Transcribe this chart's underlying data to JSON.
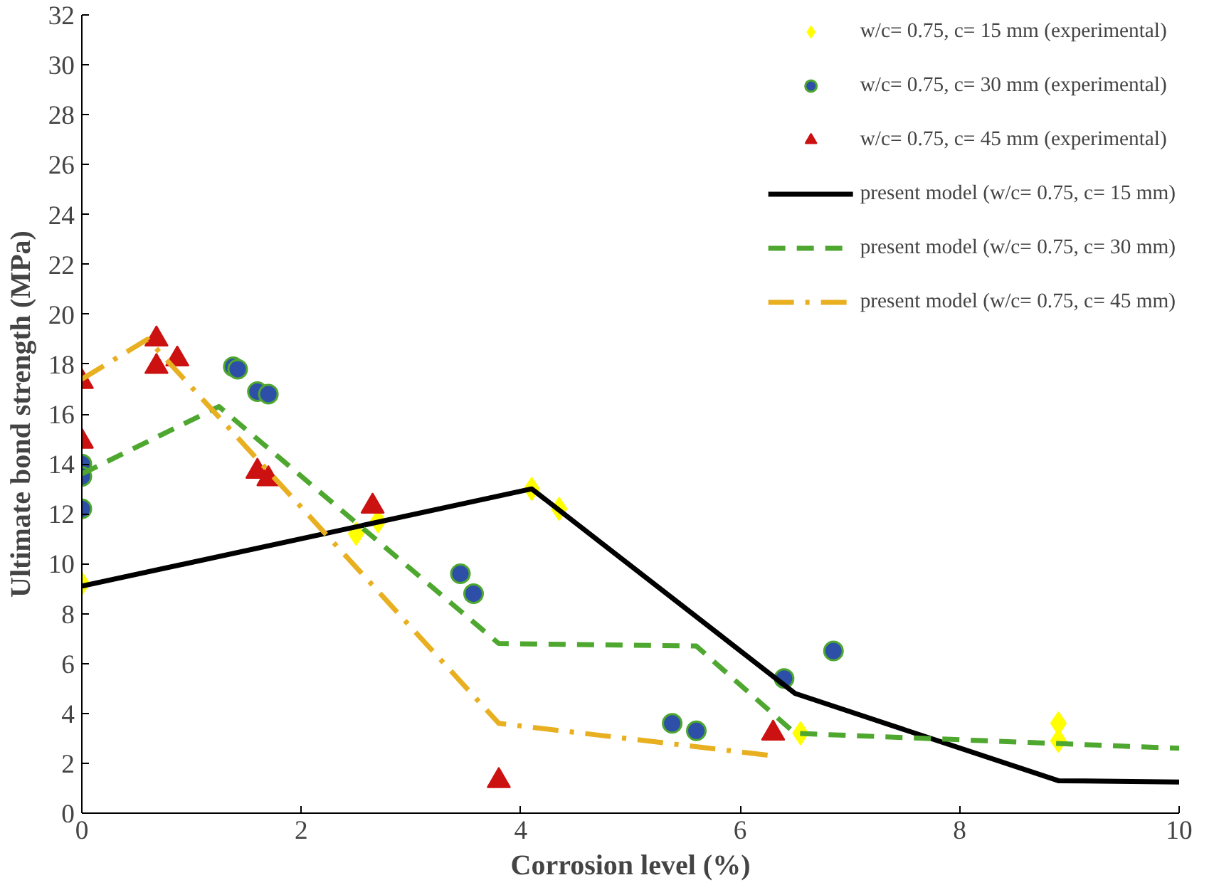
{
  "chart_data": {
    "type": "scatter",
    "xlabel": "Corrosion level (%)",
    "ylabel": "Ultimate bond strength (MPa)",
    "xlim": [
      0,
      10
    ],
    "ylim": [
      0,
      32
    ],
    "xticks": [
      0,
      2,
      4,
      6,
      8,
      10
    ],
    "yticks": [
      0,
      2,
      4,
      6,
      8,
      10,
      12,
      14,
      16,
      18,
      20,
      22,
      24,
      26,
      28,
      30,
      32
    ],
    "grid": false,
    "legend": "top right",
    "series": [
      {
        "name": "w/c= 0.75, c= 15 mm (experimental)",
        "marker": "diamond",
        "color": "#ffff00",
        "x": [
          0,
          2.5,
          2.7,
          4.1,
          4.35,
          6.55,
          8.9,
          8.9
        ],
        "values": [
          9.2,
          11.2,
          11.7,
          13.0,
          12.2,
          3.2,
          3.6,
          2.9
        ]
      },
      {
        "name": "w/c= 0.75, c= 30 mm (experimental)",
        "marker": "circle",
        "color": "#2e4fa8",
        "x": [
          0,
          0,
          0,
          1.38,
          1.42,
          1.6,
          1.7,
          3.45,
          3.57,
          5.38,
          5.6,
          6.4,
          6.85
        ],
        "values": [
          14.0,
          13.5,
          12.2,
          17.9,
          17.8,
          16.9,
          16.8,
          9.6,
          8.8,
          3.6,
          3.3,
          5.4,
          6.5
        ]
      },
      {
        "name": "w/c= 0.75, c= 45 mm (experimental)",
        "marker": "triangle",
        "color": "#cc1111",
        "x": [
          0,
          0,
          0.68,
          0.68,
          0.87,
          1.6,
          1.7,
          2.65,
          3.8,
          6.3
        ],
        "values": [
          17.3,
          14.9,
          19.0,
          17.9,
          18.2,
          13.7,
          13.4,
          12.3,
          1.3,
          3.2
        ]
      },
      {
        "name": "present model (w/c= 0.75, c= 15 mm)",
        "type": "line",
        "line_style": "solid",
        "color": "#000000",
        "x": [
          0,
          4.1,
          6.5,
          8.9,
          10
        ],
        "values": [
          9.1,
          13.0,
          4.8,
          1.3,
          1.25
        ]
      },
      {
        "name": "present model (w/c= 0.75, c= 30 mm)",
        "type": "line",
        "line_style": "dashed",
        "color": "#4ea72e",
        "x": [
          0,
          1.25,
          3.8,
          5.6,
          6.5,
          10
        ],
        "values": [
          13.6,
          16.3,
          6.8,
          6.7,
          3.2,
          2.6
        ]
      },
      {
        "name": "present model (w/c= 0.75, c= 45 mm)",
        "type": "line",
        "line_style": "dashdot",
        "color": "#e8b020",
        "x": [
          0,
          0.6,
          3.8,
          6.3
        ],
        "values": [
          17.4,
          19.0,
          3.6,
          2.3
        ]
      }
    ]
  }
}
